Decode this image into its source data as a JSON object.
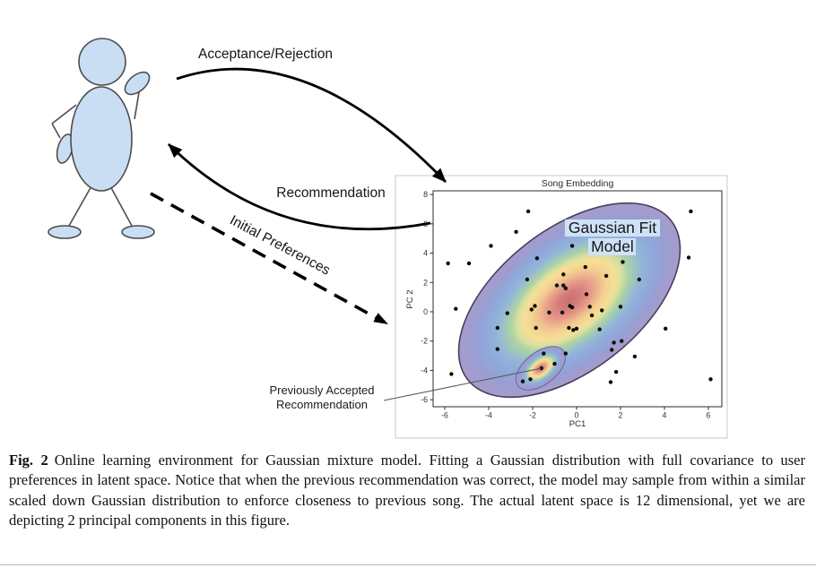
{
  "figure": {
    "arrows": {
      "acceptance": "Acceptance/Rejection",
      "recommendation": "Recommendation",
      "initial_preferences": "Initial Preferences"
    },
    "annotation": {
      "line1": "Previously Accepted",
      "line2": "Recommendation"
    }
  },
  "chart_data": {
    "type": "scatter",
    "title": "Song Embedding",
    "xlabel": "PC1",
    "ylabel": "PC 2",
    "xlim": [
      -6.6,
      6.6
    ],
    "ylim": [
      -6.5,
      8.3
    ],
    "x_ticks": [
      -6,
      -4,
      -2,
      0,
      2,
      4,
      6
    ],
    "y_ticks": [
      8,
      6,
      4,
      2,
      0,
      -2,
      -4,
      -6
    ],
    "grid": false,
    "legend": "none",
    "overlay_label": {
      "line1": "Gaussian Fit",
      "line2": "Model"
    },
    "points": [
      [
        -2.2,
        6.85
      ],
      [
        5.2,
        6.85
      ],
      [
        -2.75,
        5.45
      ],
      [
        -3.9,
        4.5
      ],
      [
        -0.2,
        4.5
      ],
      [
        -5.85,
        3.3
      ],
      [
        -4.9,
        3.3
      ],
      [
        -1.8,
        3.65
      ],
      [
        2.1,
        3.4
      ],
      [
        5.1,
        3.7
      ],
      [
        0.4,
        3.05
      ],
      [
        -2.25,
        2.2
      ],
      [
        1.35,
        2.45
      ],
      [
        2.85,
        2.2
      ],
      [
        -0.6,
        2.55
      ],
      [
        -0.9,
        1.8
      ],
      [
        -0.6,
        1.8
      ],
      [
        -0.5,
        1.6
      ],
      [
        0.45,
        1.2
      ],
      [
        -2.05,
        0.15
      ],
      [
        -1.9,
        0.4
      ],
      [
        -5.5,
        0.2
      ],
      [
        -3.15,
        -0.1
      ],
      [
        -1.25,
        -0.05
      ],
      [
        -0.65,
        -0.05
      ],
      [
        -0.3,
        0.4
      ],
      [
        -0.2,
        0.3
      ],
      [
        0.6,
        0.35
      ],
      [
        0.7,
        -0.25
      ],
      [
        1.15,
        0.1
      ],
      [
        2.0,
        0.35
      ],
      [
        -1.85,
        -1.1
      ],
      [
        -0.35,
        -1.1
      ],
      [
        -0.15,
        -1.25
      ],
      [
        0.0,
        -1.15
      ],
      [
        1.05,
        -1.2
      ],
      [
        -3.6,
        -1.1
      ],
      [
        4.05,
        -1.15
      ],
      [
        1.7,
        -2.1
      ],
      [
        2.05,
        -2.0
      ],
      [
        -3.6,
        -2.55
      ],
      [
        1.6,
        -2.6
      ],
      [
        2.65,
        -3.05
      ],
      [
        -1.5,
        -2.85
      ],
      [
        -0.5,
        -2.85
      ],
      [
        -5.7,
        -4.25
      ],
      [
        -1.6,
        -3.85
      ],
      [
        -1.0,
        -3.55
      ],
      [
        -2.45,
        -4.75
      ],
      [
        -2.1,
        -4.6
      ],
      [
        1.8,
        -4.1
      ],
      [
        1.55,
        -4.8
      ],
      [
        6.1,
        -4.6
      ]
    ],
    "gaussians": [
      {
        "name": "user-preference-fit",
        "center": [
          -0.35,
          0.75
        ],
        "tilt_deg": 38,
        "note": "full covariance Gaussian over latent song space"
      },
      {
        "name": "previously-accepted-scaled-gaussian",
        "center": [
          -1.6,
          -3.85
        ],
        "tilt_deg": 38,
        "note": "scaled-down Gaussian around previously accepted song"
      }
    ],
    "contour_colors": {
      "center_red": "#ca706e",
      "orange": "#efbb8e",
      "yellow": "#f6df95",
      "green": "#abd3a4",
      "blue": "#8fa9da",
      "purple": "#a89bcb"
    }
  },
  "person": {
    "fill": "#c9def2",
    "stroke": "#4d4d4d"
  },
  "caption": {
    "tag": "Fig. 2",
    "body": "Online learning environment for Gaussian mixture model. Fitting a Gaussian distribution with full covariance to user preferences in latent space. Notice that when the previous recommendation was correct, the model may sample from within a similar scaled down Gaussian distribution to enforce closeness to previous song. The actual latent space is 12 dimensional, yet we are depicting 2 principal components in this figure."
  }
}
